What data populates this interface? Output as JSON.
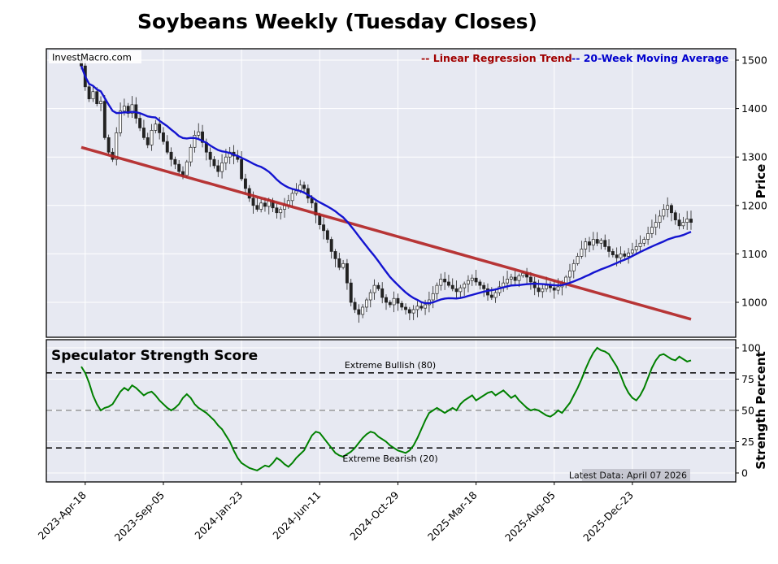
{
  "title": "Soybeans Weekly (Tuesday Closes)",
  "watermark": "InvestMacro.com",
  "legend": {
    "regression": "-- Linear Regression Trend",
    "ma": "-- 20-Week Moving Average"
  },
  "price_axis": {
    "label": "Price",
    "ticks": [
      1000,
      1100,
      1200,
      1300,
      1400,
      1500
    ]
  },
  "strength_axis": {
    "label": "Strength Percent",
    "ticks": [
      0,
      25,
      50,
      75,
      100
    ]
  },
  "strength_panel": {
    "title": "Speculator Strength Score",
    "bullish_label": "Extreme Bullish (80)",
    "bearish_label": "Extreme Bearish (20)",
    "latest_data": "Latest Data: April 07 2026"
  },
  "colors": {
    "figure_bg": "#ffffff",
    "panel_bg": "#e7e9f2",
    "grid": "#ffffff",
    "regression": "#b22222",
    "ma": "#1414d0",
    "strength": "#008000",
    "candle_up": "#ffffff",
    "candle_down": "#222222",
    "candle_stroke": "#222222",
    "legend_regression_text": "#a00000",
    "legend_ma_text": "#0000cd",
    "threshold": "#111111",
    "midline": "#999999"
  },
  "chart_data": [
    {
      "type": "candlestick",
      "name": "Soybeans Weekly Price",
      "ylabel": "Price",
      "ylim": [
        930,
        1520
      ],
      "x_tick_labels": [
        "2023-Apr-18",
        "2023-Sep-05",
        "2024-Jan-23",
        "2024-Jun-11",
        "2024-Oct-29",
        "2025-Mar-18",
        "2025-Aug-05",
        "2025-Dec-23"
      ],
      "x_tick_indices": [
        1,
        21,
        41,
        61,
        81,
        101,
        121,
        141
      ],
      "ma_window": 20,
      "ma_name": "20-Week Moving Average",
      "regression_trend": {
        "name": "Linear Regression Trend",
        "start": 1320,
        "end": 965
      },
      "closes": [
        1488,
        1445,
        1420,
        1435,
        1410,
        1415,
        1340,
        1310,
        1295,
        1350,
        1395,
        1405,
        1390,
        1408,
        1380,
        1360,
        1340,
        1325,
        1355,
        1368,
        1350,
        1332,
        1310,
        1295,
        1285,
        1270,
        1262,
        1290,
        1320,
        1345,
        1352,
        1330,
        1310,
        1295,
        1282,
        1270,
        1288,
        1300,
        1310,
        1302,
        1295,
        1255,
        1235,
        1215,
        1200,
        1192,
        1205,
        1198,
        1210,
        1195,
        1185,
        1192,
        1200,
        1210,
        1225,
        1230,
        1242,
        1235,
        1215,
        1205,
        1180,
        1160,
        1148,
        1130,
        1105,
        1090,
        1072,
        1080,
        1040,
        1000,
        985,
        975,
        990,
        1005,
        1020,
        1035,
        1028,
        1010,
        1000,
        995,
        1008,
        998,
        990,
        985,
        978,
        985,
        992,
        988,
        995,
        1005,
        1018,
        1035,
        1048,
        1042,
        1035,
        1028,
        1022,
        1030,
        1038,
        1045,
        1050,
        1042,
        1035,
        1028,
        1015,
        1010,
        1020,
        1032,
        1040,
        1048,
        1052,
        1045,
        1055,
        1060,
        1052,
        1042,
        1030,
        1022,
        1028,
        1035,
        1030,
        1025,
        1032,
        1040,
        1052,
        1065,
        1080,
        1095,
        1110,
        1125,
        1118,
        1130,
        1122,
        1128,
        1115,
        1105,
        1098,
        1092,
        1100,
        1095,
        1102,
        1108,
        1115,
        1122,
        1130,
        1142,
        1155,
        1165,
        1178,
        1192,
        1200,
        1185,
        1170,
        1158,
        1165,
        1172,
        1165
      ]
    },
    {
      "type": "line",
      "name": "Speculator Strength Score",
      "ylabel": "Strength Percent",
      "ylim": [
        0,
        100
      ],
      "thresholds": {
        "extreme_bullish": 80,
        "midline": 50,
        "extreme_bearish": 20
      },
      "values": [
        85,
        80,
        72,
        62,
        55,
        50,
        52,
        53,
        55,
        60,
        65,
        68,
        66,
        70,
        68,
        65,
        62,
        64,
        65,
        62,
        58,
        55,
        52,
        50,
        52,
        55,
        60,
        63,
        60,
        55,
        52,
        50,
        48,
        45,
        42,
        38,
        35,
        30,
        25,
        18,
        12,
        8,
        6,
        4,
        3,
        2,
        4,
        6,
        5,
        8,
        12,
        10,
        7,
        5,
        8,
        12,
        15,
        18,
        24,
        30,
        33,
        32,
        28,
        24,
        20,
        16,
        14,
        13,
        15,
        17,
        20,
        24,
        28,
        31,
        33,
        32,
        29,
        27,
        25,
        22,
        20,
        18,
        17,
        16,
        18,
        22,
        28,
        35,
        42,
        48,
        50,
        52,
        50,
        48,
        50,
        52,
        50,
        55,
        58,
        60,
        62,
        58,
        60,
        62,
        64,
        65,
        62,
        64,
        66,
        63,
        60,
        62,
        58,
        55,
        52,
        50,
        51,
        50,
        48,
        46,
        45,
        47,
        50,
        48,
        52,
        56,
        62,
        68,
        75,
        83,
        90,
        96,
        100,
        98,
        97,
        95,
        90,
        85,
        78,
        70,
        64,
        60,
        58,
        62,
        68,
        76,
        84,
        90,
        94,
        95,
        93,
        91,
        90,
        93,
        91,
        89,
        90
      ]
    }
  ]
}
